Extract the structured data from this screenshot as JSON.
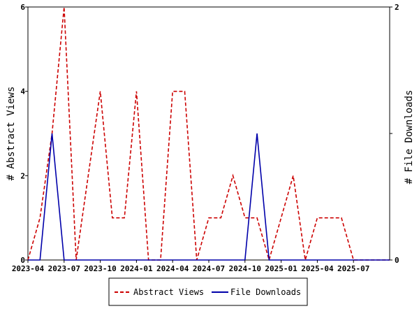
{
  "chart_data": {
    "type": "line",
    "x": [
      "2023-04",
      "2023-05",
      "2023-06",
      "2023-07",
      "2023-08",
      "2023-09",
      "2023-10",
      "2023-11",
      "2023-12",
      "2024-01",
      "2024-02",
      "2024-03",
      "2024-04",
      "2024-05",
      "2024-06",
      "2024-07",
      "2024-08",
      "2024-09",
      "2024-10",
      "2024-11",
      "2024-12",
      "2025-01",
      "2025-02",
      "2025-03",
      "2025-04",
      "2025-05",
      "2025-06",
      "2025-07",
      "2025-08",
      "2025-09",
      "2025-10"
    ],
    "x_tick_labels": [
      "2023-04",
      "2023-07",
      "2023-10",
      "2024-01",
      "2024-04",
      "2024-07",
      "2024-10",
      "2025-01",
      "2025-04",
      "2025-07"
    ],
    "ylabel_left": "# Abstract Views",
    "ylabel_right": "# File Downloads",
    "ylim_left": [
      0,
      6
    ],
    "ylim_right": [
      0,
      2
    ],
    "y_ticks_left": [
      "0",
      "2",
      "4",
      "6"
    ],
    "y_ticks_right": [
      "0",
      "1",
      "2"
    ],
    "grid": false,
    "legend_position": "bottom-center",
    "series": [
      {
        "name": "Abstract Views",
        "axis": "left",
        "color": "#cc0000",
        "style": "dashed",
        "values": [
          0,
          1,
          3,
          6,
          0,
          2,
          4,
          1,
          1,
          4,
          0,
          0,
          4,
          4,
          0,
          1,
          1,
          2,
          1,
          1,
          0,
          1,
          2,
          0,
          1,
          1,
          1,
          0,
          0,
          0,
          0
        ]
      },
      {
        "name": "File Downloads",
        "axis": "right",
        "color": "#0000aa",
        "style": "solid",
        "values": [
          0,
          0,
          1,
          0,
          0,
          0,
          0,
          0,
          0,
          0,
          0,
          0,
          0,
          0,
          0,
          0,
          0,
          0,
          0,
          1,
          0,
          0,
          0,
          0,
          0,
          0,
          0,
          0,
          0,
          0,
          0
        ]
      }
    ]
  }
}
